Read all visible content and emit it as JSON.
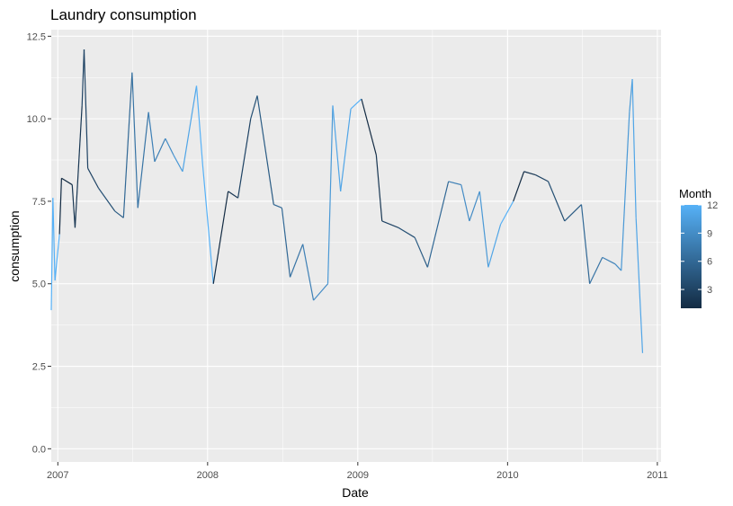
{
  "chart_data": {
    "type": "line",
    "title": "Laundry consumption",
    "xlabel": "Date",
    "ylabel": "consumption",
    "x_ticks": [
      "2007",
      "2008",
      "2009",
      "2010",
      "2011"
    ],
    "y_ticks": [
      "0.0",
      "2.5",
      "5.0",
      "7.5",
      "10.0",
      "12.5"
    ],
    "xlim": [
      "2006-12-16",
      "2011-01-10"
    ],
    "ylim": [
      -0.4,
      12.7
    ],
    "date_range": [
      "2006-12-16",
      "2010-11-26"
    ],
    "grid": true,
    "legend": {
      "title": "Month",
      "position": "right",
      "labels": [
        "12",
        "9",
        "6",
        "3"
      ],
      "values": [
        12,
        9,
        6,
        3
      ],
      "gradient": [
        "#132B43",
        "#56B1F7"
      ]
    },
    "color_scale": {
      "low": "#132B43",
      "high": "#56B1F7",
      "min": 1,
      "max": 12
    },
    "series": [
      {
        "color_by": "Month",
        "x": [
          "2006-12-16",
          "2006-12-20",
          "2006-12-25",
          "2007-01-05",
          "2007-01-10",
          "2007-02-05",
          "2007-02-12",
          "2007-03-01",
          "2007-03-06",
          "2007-03-15",
          "2007-04-10",
          "2007-05-20",
          "2007-06-10",
          "2007-07-01",
          "2007-07-15",
          "2007-08-10",
          "2007-08-25",
          "2007-09-20",
          "2007-10-10",
          "2007-11-01",
          "2007-12-05",
          "2007-12-20",
          "2008-01-15",
          "2008-02-20",
          "2008-03-15",
          "2008-04-15",
          "2008-05-01",
          "2008-06-10",
          "2008-06-30",
          "2008-07-20",
          "2008-08-20",
          "2008-09-15",
          "2008-10-20",
          "2008-11-01",
          "2008-11-20",
          "2008-12-15",
          "2009-01-10",
          "2009-02-15",
          "2009-03-01",
          "2009-04-10",
          "2009-05-20",
          "2009-06-20",
          "2009-08-10",
          "2009-09-10",
          "2009-09-30",
          "2009-10-25",
          "2009-11-15",
          "2009-12-15",
          "2010-01-15",
          "2010-02-10",
          "2010-03-10",
          "2010-04-10",
          "2010-05-20",
          "2010-06-30",
          "2010-07-20",
          "2010-08-20",
          "2010-09-20",
          "2010-10-05",
          "2010-10-25",
          "2010-11-01",
          "2010-11-10",
          "2010-11-26"
        ],
        "y": [
          4.2,
          7.6,
          5.1,
          6.5,
          8.2,
          8.0,
          6.7,
          10.4,
          12.1,
          8.5,
          7.9,
          7.2,
          7.0,
          11.4,
          7.3,
          10.2,
          8.7,
          9.4,
          8.9,
          8.4,
          11.0,
          8.6,
          5.0,
          7.8,
          7.6,
          10.0,
          10.7,
          7.4,
          7.3,
          5.2,
          6.2,
          4.5,
          5.0,
          10.4,
          7.8,
          10.3,
          10.6,
          8.9,
          6.9,
          6.7,
          6.4,
          5.5,
          8.1,
          8.0,
          6.9,
          7.8,
          5.5,
          6.8,
          7.5,
          8.4,
          8.3,
          8.1,
          6.9,
          7.4,
          5.0,
          5.8,
          5.6,
          5.4,
          10.2,
          11.2,
          7.0,
          2.9
        ]
      }
    ]
  }
}
